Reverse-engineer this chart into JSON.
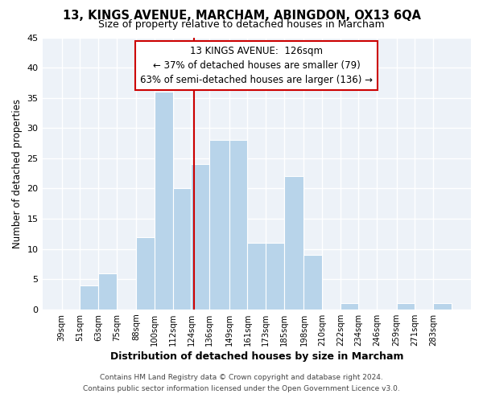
{
  "title1": "13, KINGS AVENUE, MARCHAM, ABINGDON, OX13 6QA",
  "title2": "Size of property relative to detached houses in Marcham",
  "xlabel": "Distribution of detached houses by size in Marcham",
  "ylabel": "Number of detached properties",
  "bin_edges": [
    39,
    51,
    63,
    75,
    88,
    100,
    112,
    124,
    136,
    149,
    161,
    173,
    185,
    198,
    210,
    222,
    234,
    246,
    259,
    271,
    283
  ],
  "bin_labels": [
    "39sqm",
    "51sqm",
    "63sqm",
    "75sqm",
    "88sqm",
    "100sqm",
    "112sqm",
    "124sqm",
    "136sqm",
    "149sqm",
    "161sqm",
    "173sqm",
    "185sqm",
    "198sqm",
    "210sqm",
    "222sqm",
    "234sqm",
    "246sqm",
    "259sqm",
    "271sqm",
    "283sqm"
  ],
  "counts": [
    0,
    4,
    6,
    0,
    12,
    36,
    20,
    24,
    28,
    28,
    11,
    11,
    22,
    9,
    0,
    1,
    0,
    0,
    1,
    0,
    1
  ],
  "bar_color": "#b8d4ea",
  "bar_edge_color": "#ffffff",
  "vline_x": 126,
  "vline_color": "#cc0000",
  "annotation_line1": "13 KINGS AVENUE:  126sqm",
  "annotation_line2": "← 37% of detached houses are smaller (79)",
  "annotation_line3": "63% of semi-detached houses are larger (136) →",
  "annotation_box_edge": "#cc0000",
  "annotation_box_facecolor": "#ffffff",
  "ylim": [
    0,
    45
  ],
  "yticks": [
    0,
    5,
    10,
    15,
    20,
    25,
    30,
    35,
    40,
    45
  ],
  "footer1": "Contains HM Land Registry data © Crown copyright and database right 2024.",
  "footer2": "Contains public sector information licensed under the Open Government Licence v3.0.",
  "background_color": "#ffffff",
  "plot_bg_color": "#edf2f8",
  "grid_color": "#ffffff"
}
